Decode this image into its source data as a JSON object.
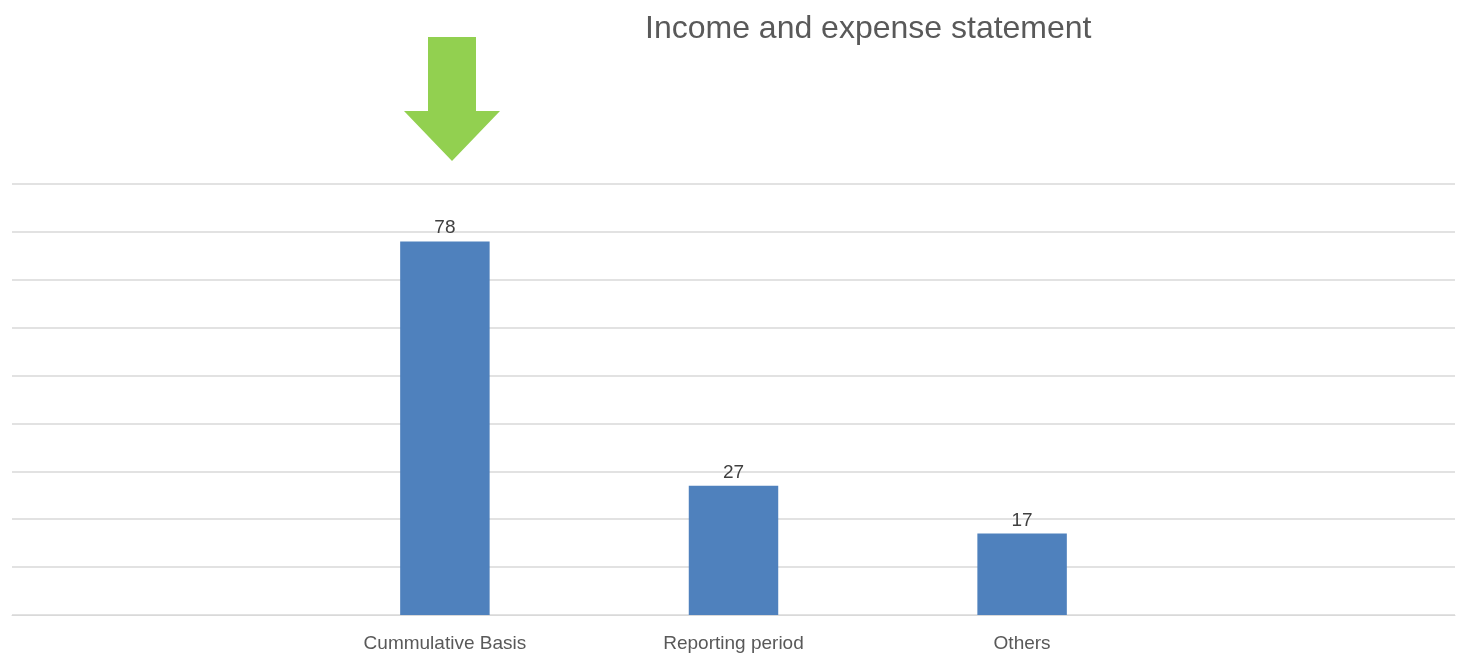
{
  "chart_data": {
    "type": "bar",
    "title": "Income and expense statement",
    "categories": [
      null,
      "Cummulative Basis",
      "Reporting period",
      "Others",
      null
    ],
    "values": [
      null,
      78,
      27,
      17,
      null
    ],
    "color": "#4f81bd",
    "ylim": [
      0,
      90
    ],
    "yticks": [
      {
        "value": 0,
        "label": null
      },
      {
        "value": 10,
        "label": null
      },
      {
        "value": 20,
        "label": null
      },
      {
        "value": 30,
        "label": null
      },
      {
        "value": 40,
        "label": null
      },
      {
        "value": 50,
        "label": null
      },
      {
        "value": 60,
        "label": null
      },
      {
        "value": 70,
        "label": null
      },
      {
        "value": 80,
        "label": null
      },
      {
        "value": 90,
        "label": null
      }
    ],
    "tick_labels": "x",
    "grid": "y",
    "data_labels": true
  }
}
